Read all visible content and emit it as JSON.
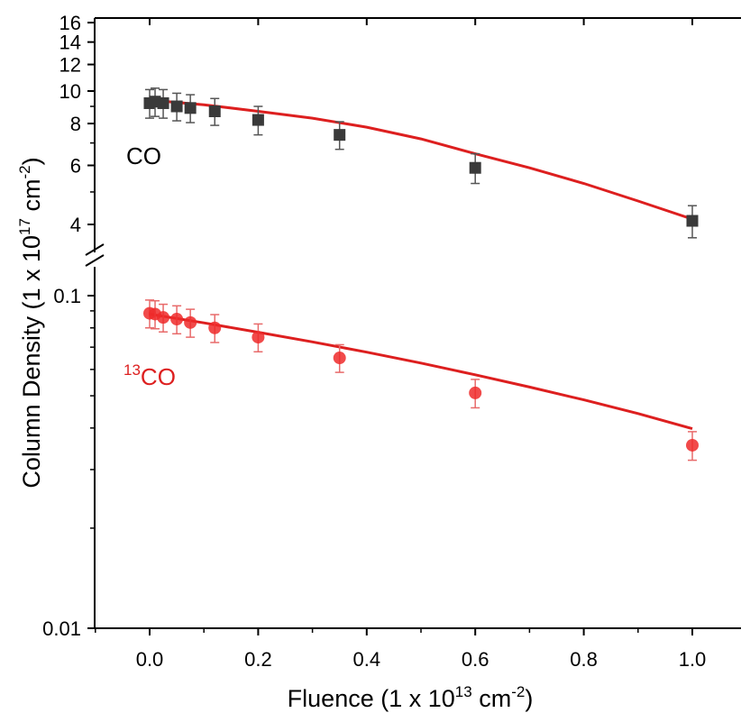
{
  "chart_data": {
    "type": "scatter",
    "title": "",
    "xlabel": {
      "pre": "Fluence (1 x 10",
      "sup": "13",
      "mid": " cm",
      "sup2": "-2",
      "post": ")"
    },
    "ylabel": {
      "pre": "Column Density (1 x 10",
      "sup": "17",
      "mid": " cm",
      "sup2": "-2",
      "post": ")"
    },
    "x_axis": {
      "range": [
        -0.1,
        1.08
      ],
      "ticks": [
        0.0,
        0.2,
        0.4,
        0.6,
        0.8,
        1.0
      ],
      "tick_labels": [
        "0.0",
        "0.2",
        "0.4",
        "0.6",
        "0.8",
        "1.0"
      ]
    },
    "y_axis": {
      "scale": "log",
      "broken": true,
      "upper_segment": {
        "range": [
          3.4,
          16
        ],
        "ticks": [
          4,
          6,
          8,
          10,
          12,
          14,
          16
        ],
        "tick_labels": [
          "4",
          "6",
          "8",
          "10",
          "12",
          "14",
          "16"
        ]
      },
      "lower_segment": {
        "range": [
          0.01,
          0.11
        ],
        "ticks": [
          0.01,
          0.1
        ],
        "tick_labels": [
          "0.01",
          "0.1"
        ]
      }
    },
    "grid": false,
    "series": [
      {
        "name": "CO",
        "label_main": "CO",
        "label_sup": "",
        "segment": "upper",
        "marker": "square",
        "marker_color": "#3a3a3a",
        "fit_color": "#dd1f1f",
        "x": [
          0.0,
          0.01,
          0.025,
          0.05,
          0.075,
          0.12,
          0.2,
          0.35,
          0.6,
          1.0
        ],
        "y": [
          9.2,
          9.3,
          9.2,
          9.0,
          8.9,
          8.7,
          8.2,
          7.4,
          5.9,
          4.1
        ],
        "err": [
          0.9,
          0.9,
          0.9,
          0.85,
          0.85,
          0.8,
          0.8,
          0.7,
          0.6,
          0.45
        ],
        "fit": [
          [
            0.0,
            9.4
          ],
          [
            0.1,
            9.1
          ],
          [
            0.2,
            8.7
          ],
          [
            0.3,
            8.3
          ],
          [
            0.4,
            7.8
          ],
          [
            0.5,
            7.2
          ],
          [
            0.6,
            6.5
          ],
          [
            0.7,
            5.9
          ],
          [
            0.8,
            5.3
          ],
          [
            0.9,
            4.7
          ],
          [
            1.0,
            4.15
          ]
        ]
      },
      {
        "name": "13CO",
        "label_main": "CO",
        "label_sup": "13",
        "segment": "lower",
        "marker": "circle",
        "marker_color": "#ee2a2a",
        "fit_color": "#dd1f1f",
        "x": [
          0.0,
          0.01,
          0.025,
          0.05,
          0.075,
          0.12,
          0.2,
          0.35,
          0.6,
          1.0
        ],
        "y": [
          0.0885,
          0.088,
          0.086,
          0.085,
          0.083,
          0.08,
          0.075,
          0.065,
          0.051,
          0.0355
        ],
        "err": [
          0.0085,
          0.0085,
          0.0082,
          0.0082,
          0.008,
          0.0077,
          0.0072,
          0.0062,
          0.005,
          0.0035
        ],
        "fit": [
          [
            0.0,
            0.088
          ],
          [
            0.1,
            0.0828
          ],
          [
            0.2,
            0.0776
          ],
          [
            0.3,
            0.0726
          ],
          [
            0.4,
            0.0676
          ],
          [
            0.5,
            0.0627
          ],
          [
            0.6,
            0.0578
          ],
          [
            0.7,
            0.0531
          ],
          [
            0.8,
            0.0486
          ],
          [
            0.9,
            0.0442
          ],
          [
            1.0,
            0.0398
          ]
        ]
      }
    ]
  }
}
